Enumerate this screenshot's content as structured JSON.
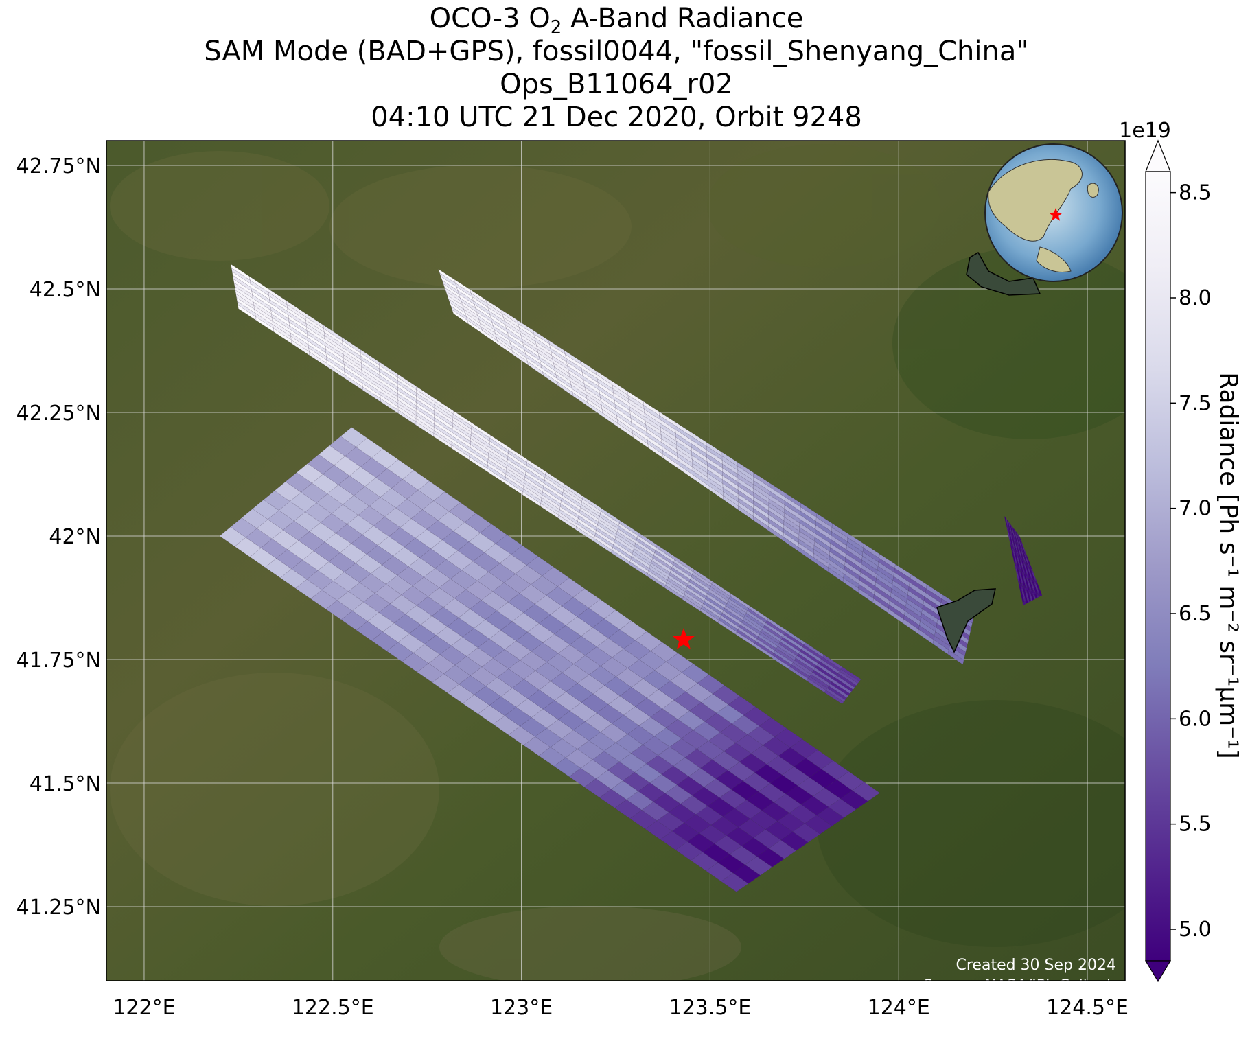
{
  "title": {
    "line1_prefix": "OCO-3 O",
    "line1_sub": "2",
    "line1_suffix": " A-Band Radiance",
    "line2": "SAM Mode (BAD+GPS), fossil0044, \"fossil_Shenyang_China\"",
    "line3": "Ops_B11064_r02",
    "line4": "04:10 UTC 21 Dec 2020, Orbit 9248"
  },
  "map": {
    "lon_range": [
      121.9,
      124.6
    ],
    "lat_range": [
      41.1,
      42.8
    ],
    "lon_ticks": [
      122.0,
      122.5,
      123.0,
      123.5,
      124.0,
      124.5
    ],
    "lat_ticks": [
      41.25,
      41.5,
      41.75,
      42.0,
      42.25,
      42.5,
      42.75
    ],
    "lon_tick_labels": [
      "122°E",
      "122.5°E",
      "123°E",
      "123.5°E",
      "124°E",
      "124.5°E"
    ],
    "lat_tick_labels": [
      "41.25°N",
      "41.5°N",
      "41.75°N",
      "42°N",
      "42.25°N",
      "42.5°N",
      "42.75°N"
    ],
    "gridlines": true,
    "basemap": "satellite imagery (green/brown terrain)",
    "target_marker": {
      "icon": "red-star-icon",
      "lon": 123.43,
      "lat": 41.79,
      "color": "#ff0000"
    },
    "inset_globe": {
      "icon": "globe-icon",
      "placement": "top-right"
    },
    "credit_line1": "Created 30 Sep 2024",
    "credit_line2": "Source: NASA/JPL-Caltech"
  },
  "colorbar": {
    "label": "Radiance [Ph s⁻¹ m⁻² sr⁻¹μm⁻¹]",
    "scale_label": "1e19",
    "ticks": [
      5.0,
      5.5,
      6.0,
      6.5,
      7.0,
      7.5,
      8.0,
      8.5
    ],
    "tick_labels": [
      "5.0",
      "5.5",
      "6.0",
      "6.5",
      "7.0",
      "7.5",
      "8.0",
      "8.5"
    ],
    "range": [
      4.85,
      8.6
    ],
    "colormap": [
      "#3f007d",
      "#54278f",
      "#6a51a3",
      "#807dba",
      "#9e9ac8",
      "#bcbddc",
      "#dadaeb",
      "#efedf5",
      "#fcfbfd"
    ],
    "extend": "both"
  },
  "chart_data": {
    "type": "heatmap",
    "variable": "Radiance",
    "units": "1e19 Ph s-1 m-2 sr-1 μm-1",
    "swaths": [
      {
        "corners_lonlat": [
          [
            122.23,
            42.55
          ],
          [
            122.25,
            42.46
          ],
          [
            123.85,
            41.66
          ],
          [
            123.9,
            41.71
          ]
        ],
        "lon_at_value": [
          122.3,
          122.8,
          123.2,
          123.6,
          123.85
        ],
        "values": [
          8.3,
          8.1,
          7.8,
          6.4,
          5.6
        ]
      },
      {
        "corners_lonlat": [
          [
            122.78,
            42.54
          ],
          [
            122.82,
            42.45
          ],
          [
            124.17,
            41.74
          ],
          [
            124.2,
            41.84
          ]
        ],
        "lon_at_value": [
          122.85,
          123.3,
          123.6,
          123.9,
          124.15
        ],
        "values": [
          8.2,
          8.0,
          7.1,
          6.3,
          6.1
        ]
      },
      {
        "corners_lonlat": [
          [
            122.2,
            42.0
          ],
          [
            122.55,
            42.22
          ],
          [
            123.95,
            41.48
          ],
          [
            123.57,
            41.28
          ]
        ],
        "lon_at_value": [
          122.25,
          122.7,
          123.1,
          123.4,
          123.7,
          123.9
        ],
        "values": [
          7.1,
          6.7,
          6.5,
          5.2,
          5.3,
          5.0
        ]
      },
      {
        "corners_lonlat": [
          [
            124.28,
            42.04
          ],
          [
            124.32,
            42.0
          ],
          [
            124.38,
            41.88
          ],
          [
            124.33,
            41.86
          ]
        ],
        "lon_at_value": [
          124.28,
          124.33
        ],
        "values": [
          5.0,
          5.0
        ]
      }
    ]
  }
}
